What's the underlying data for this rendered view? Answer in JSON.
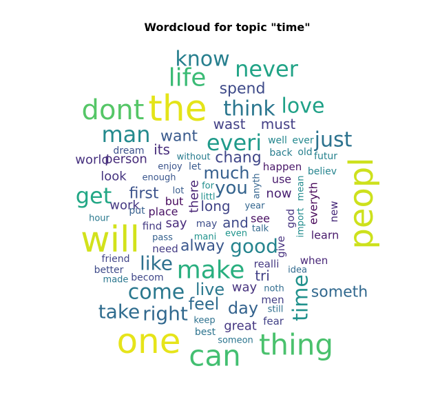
{
  "title": "Wordcloud for topic \"time\"",
  "chart_data": {
    "type": "wordcloud",
    "title": "Wordcloud for topic \"time\"",
    "colormap": "viridis",
    "words": [
      {
        "text": "the",
        "size": 52,
        "color": "#e4e419"
      },
      {
        "text": "will",
        "size": 52,
        "color": "#d2e21b"
      },
      {
        "text": "one",
        "size": 50,
        "color": "#e6e41a"
      },
      {
        "text": "peopl",
        "size": 48,
        "color": "#cde11d",
        "rotate": true
      },
      {
        "text": "can",
        "size": 42,
        "color": "#43bf71"
      },
      {
        "text": "thing",
        "size": 42,
        "color": "#4ac16d"
      },
      {
        "text": "dont",
        "size": 40,
        "color": "#55c667"
      },
      {
        "text": "make",
        "size": 36,
        "color": "#29af7f"
      },
      {
        "text": "life",
        "size": 36,
        "color": "#3bbb75"
      },
      {
        "text": "never",
        "size": 32,
        "color": "#20a386"
      },
      {
        "text": "man",
        "size": 32,
        "color": "#238a8d"
      },
      {
        "text": "everi",
        "size": 32,
        "color": "#1f9a8a"
      },
      {
        "text": "get",
        "size": 32,
        "color": "#22a785"
      },
      {
        "text": "know",
        "size": 30,
        "color": "#277f8e"
      },
      {
        "text": "think",
        "size": 30,
        "color": "#2a768e"
      },
      {
        "text": "love",
        "size": 30,
        "color": "#1fa187"
      },
      {
        "text": "just",
        "size": 30,
        "color": "#2c728e"
      },
      {
        "text": "time",
        "size": 30,
        "color": "#21918c",
        "rotate": true
      },
      {
        "text": "come",
        "size": 30,
        "color": "#2a788e"
      },
      {
        "text": "good",
        "size": 28,
        "color": "#25848e"
      },
      {
        "text": "like",
        "size": 28,
        "color": "#2d708e"
      },
      {
        "text": "take",
        "size": 28,
        "color": "#2f6c8e"
      },
      {
        "text": "right",
        "size": 28,
        "color": "#31688e"
      },
      {
        "text": "you",
        "size": 26,
        "color": "#33638d"
      },
      {
        "text": "much",
        "size": 24,
        "color": "#355f8d"
      },
      {
        "text": "live",
        "size": 24,
        "color": "#2a788e"
      },
      {
        "text": "feel",
        "size": 24,
        "color": "#2f6b8e"
      },
      {
        "text": "day",
        "size": 24,
        "color": "#33628d"
      },
      {
        "text": "first",
        "size": 22,
        "color": "#3b528b"
      },
      {
        "text": "alway",
        "size": 22,
        "color": "#39568c"
      },
      {
        "text": "someth",
        "size": 22,
        "color": "#31688e"
      },
      {
        "text": "spend",
        "size": 22,
        "color": "#3e4a89"
      },
      {
        "text": "chang",
        "size": 22,
        "color": "#404688"
      },
      {
        "text": "want",
        "size": 22,
        "color": "#38598c"
      },
      {
        "text": "long",
        "size": 20,
        "color": "#414487"
      },
      {
        "text": "and",
        "size": 20,
        "color": "#3e4989"
      },
      {
        "text": "wast",
        "size": 20,
        "color": "#424086"
      },
      {
        "text": "must",
        "size": 20,
        "color": "#433e85"
      },
      {
        "text": "great",
        "size": 18,
        "color": "#453781"
      },
      {
        "text": "way",
        "size": 18,
        "color": "#46327e"
      },
      {
        "text": "its",
        "size": 20,
        "color": "#472d7b"
      },
      {
        "text": "person",
        "size": 18,
        "color": "#472c7a"
      },
      {
        "text": "world",
        "size": 18,
        "color": "#46307e"
      },
      {
        "text": "look",
        "size": 18,
        "color": "#45337f"
      },
      {
        "text": "work",
        "size": 18,
        "color": "#453882"
      },
      {
        "text": "tri",
        "size": 20,
        "color": "#424086"
      },
      {
        "text": "say",
        "size": 18,
        "color": "#472a7a"
      },
      {
        "text": "there",
        "size": 18,
        "color": "#482475",
        "rotate": true
      },
      {
        "text": "now",
        "size": 18,
        "color": "#482071"
      },
      {
        "text": "use",
        "size": 16,
        "color": "#481b6d"
      },
      {
        "text": "happen",
        "size": 15,
        "color": "#481668"
      },
      {
        "text": "place",
        "size": 16,
        "color": "#471063"
      },
      {
        "text": "but",
        "size": 16,
        "color": "#46085c"
      },
      {
        "text": "everyth",
        "size": 16,
        "color": "#450457",
        "rotate": true
      },
      {
        "text": "see",
        "size": 16,
        "color": "#470e61"
      },
      {
        "text": "learn",
        "size": 16,
        "color": "#48196b"
      },
      {
        "text": "when",
        "size": 15,
        "color": "#482677"
      },
      {
        "text": "new",
        "size": 15,
        "color": "#472a7a",
        "rotate": true
      },
      {
        "text": "give",
        "size": 15,
        "color": "#46307e",
        "rotate": true
      },
      {
        "text": "god",
        "size": 15,
        "color": "#463480",
        "rotate": true
      },
      {
        "text": "realli",
        "size": 15,
        "color": "#453882"
      },
      {
        "text": "need",
        "size": 15,
        "color": "#443b84"
      },
      {
        "text": "find",
        "size": 15,
        "color": "#443a83"
      },
      {
        "text": "men",
        "size": 15,
        "color": "#433e85"
      },
      {
        "text": "fear",
        "size": 15,
        "color": "#424186"
      },
      {
        "text": "friend",
        "size": 14,
        "color": "#414487"
      },
      {
        "text": "becom",
        "size": 14,
        "color": "#3f4788"
      },
      {
        "text": "better",
        "size": 14,
        "color": "#3e4a89"
      },
      {
        "text": "may",
        "size": 14,
        "color": "#3d4d8a"
      },
      {
        "text": "dream",
        "size": 14,
        "color": "#3c508b"
      },
      {
        "text": "enjoy",
        "size": 13,
        "color": "#3a538b"
      },
      {
        "text": "enough",
        "size": 13,
        "color": "#39568c"
      },
      {
        "text": "let",
        "size": 14,
        "color": "#38598c"
      },
      {
        "text": "lot",
        "size": 13,
        "color": "#375b8d"
      },
      {
        "text": "put",
        "size": 14,
        "color": "#355e8d"
      },
      {
        "text": "pass",
        "size": 13,
        "color": "#34608d"
      },
      {
        "text": "anyth",
        "size": 13,
        "color": "#33638d",
        "rotate": true
      },
      {
        "text": "year",
        "size": 13,
        "color": "#32658e"
      },
      {
        "text": "talk",
        "size": 13,
        "color": "#31688e"
      },
      {
        "text": "idea",
        "size": 13,
        "color": "#306a8e"
      },
      {
        "text": "noth",
        "size": 13,
        "color": "#2f6c8e"
      },
      {
        "text": "still",
        "size": 13,
        "color": "#2e6e8e"
      },
      {
        "text": "keep",
        "size": 13,
        "color": "#2d718e"
      },
      {
        "text": "best",
        "size": 14,
        "color": "#2c738e"
      },
      {
        "text": "someon",
        "size": 13,
        "color": "#2b758e"
      },
      {
        "text": "made",
        "size": 13,
        "color": "#2a778e"
      },
      {
        "text": "hour",
        "size": 13,
        "color": "#29798e"
      },
      {
        "text": "without",
        "size": 13,
        "color": "#287c8e"
      },
      {
        "text": "back",
        "size": 14,
        "color": "#287d8e"
      },
      {
        "text": "old",
        "size": 14,
        "color": "#27808e"
      },
      {
        "text": "futur",
        "size": 14,
        "color": "#26828e"
      },
      {
        "text": "believ",
        "size": 14,
        "color": "#25848e"
      },
      {
        "text": "well",
        "size": 14,
        "color": "#24868e"
      },
      {
        "text": "ever",
        "size": 14,
        "color": "#23888e"
      },
      {
        "text": "mean",
        "size": 13,
        "color": "#228a8d",
        "rotate": true
      },
      {
        "text": "import",
        "size": 13,
        "color": "#218c8d",
        "rotate": true
      },
      {
        "text": "for",
        "size": 13,
        "color": "#218e8d"
      },
      {
        "text": "littl",
        "size": 13,
        "color": "#20908d"
      },
      {
        "text": "mani",
        "size": 13,
        "color": "#1f928c"
      },
      {
        "text": "even",
        "size": 13,
        "color": "#1f948c"
      }
    ]
  }
}
